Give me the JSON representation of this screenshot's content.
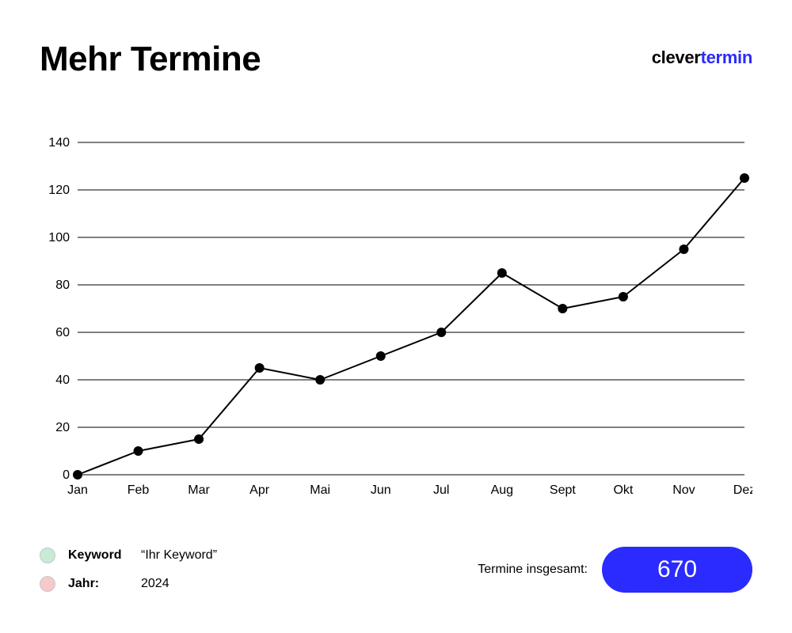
{
  "header": {
    "title": "Mehr Termine",
    "logo_a": "clever",
    "logo_b": "termin",
    "logo_color_a": "#000000",
    "logo_color_b": "#2b2bff"
  },
  "chart": {
    "type": "line",
    "categories": [
      "Jan",
      "Feb",
      "Mar",
      "Apr",
      "Mai",
      "Jun",
      "Jul",
      "Aug",
      "Sept",
      "Okt",
      "Nov",
      "Dez"
    ],
    "values": [
      0,
      10,
      15,
      45,
      40,
      50,
      60,
      85,
      70,
      75,
      95,
      125
    ],
    "ylim": [
      0,
      140
    ],
    "ytick_step": 20,
    "line_color": "#000000",
    "line_width": 2,
    "marker_color": "#000000",
    "marker_radius": 6,
    "grid_color": "#000000",
    "grid_width": 1,
    "background_color": "#ffffff",
    "axis_fontsize": 16,
    "axis_color": "#000000"
  },
  "footer": {
    "keyword": {
      "swatch_color": "#c7ebd6",
      "label": "Keyword",
      "value": "“Ihr Keyword”"
    },
    "year": {
      "swatch_color": "#f6c9cd",
      "label": "Jahr:",
      "value": "2024"
    },
    "total": {
      "label": "Termine insgesamt:",
      "value": "670",
      "pill_bg": "#2b2bff",
      "pill_fg": "#ffffff"
    }
  }
}
